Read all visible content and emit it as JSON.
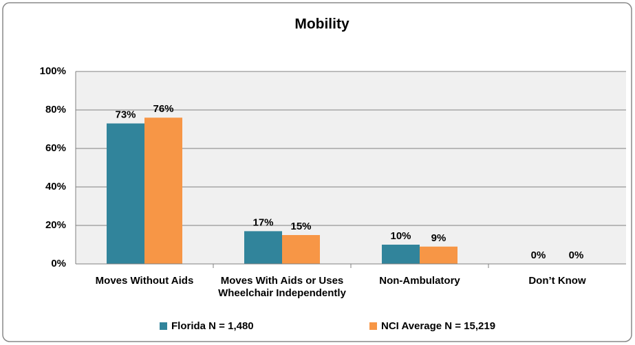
{
  "chart_data": {
    "type": "bar",
    "title": "Mobility",
    "categories": [
      "Moves Without Aids",
      "Moves With Aids or Uses Wheelchair Independently",
      "Non-Ambulatory",
      "Don’t Know"
    ],
    "series": [
      {
        "name": "Florida N = 1,480",
        "color": "#31849b",
        "values": [
          73,
          17,
          10,
          0
        ],
        "value_labels": [
          "73%",
          "17%",
          "10%",
          "0%"
        ]
      },
      {
        "name": "NCI Average N = 15,219",
        "color": "#f79646",
        "values": [
          76,
          15,
          9,
          0
        ],
        "value_labels": [
          "76%",
          "15%",
          "9%",
          "0%"
        ]
      }
    ],
    "ylim": [
      0,
      100
    ],
    "yticks": [
      {
        "value": 0,
        "label": "0%"
      },
      {
        "value": 20,
        "label": "20%"
      },
      {
        "value": 40,
        "label": "40%"
      },
      {
        "value": 60,
        "label": "60%"
      },
      {
        "value": 80,
        "label": "80%"
      },
      {
        "value": 100,
        "label": "100%"
      }
    ],
    "grid": true,
    "legend": "bottom"
  }
}
